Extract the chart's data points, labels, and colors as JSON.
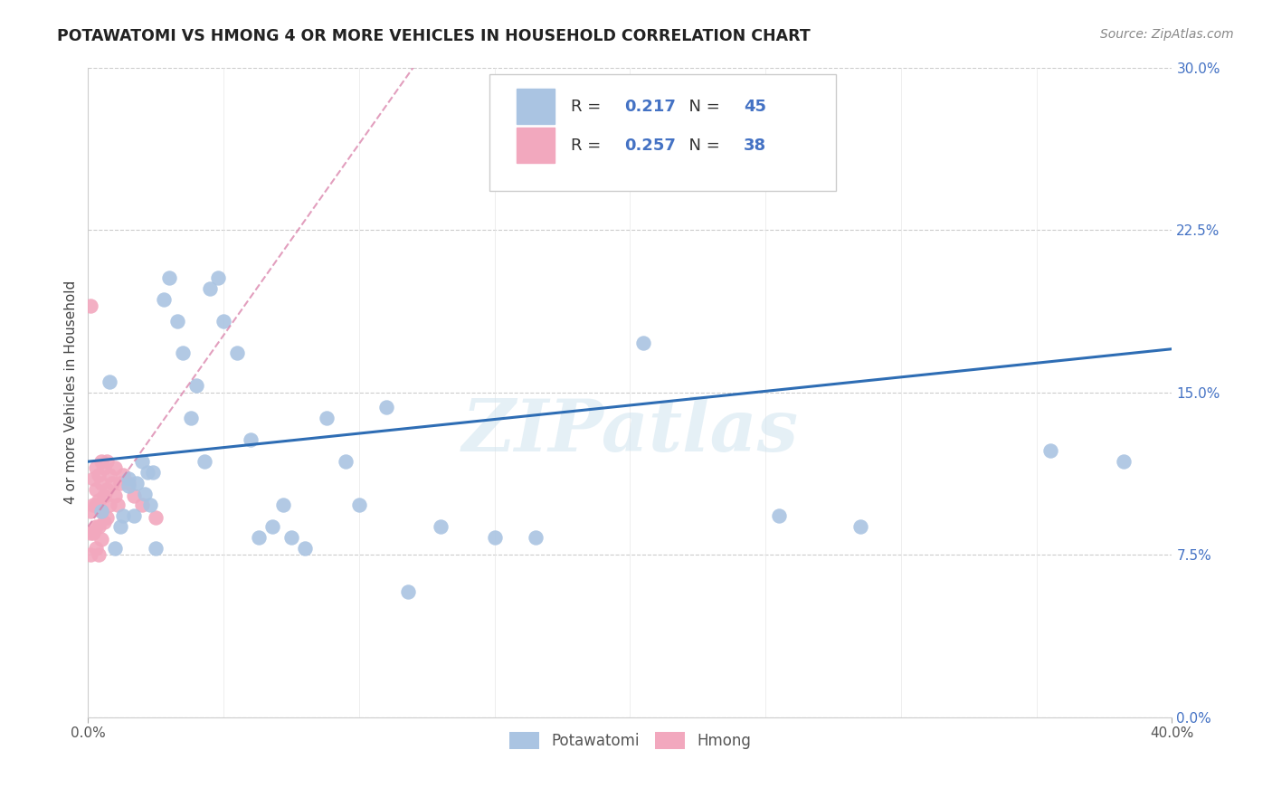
{
  "title": "POTAWATOMI VS HMONG 4 OR MORE VEHICLES IN HOUSEHOLD CORRELATION CHART",
  "source": "Source: ZipAtlas.com",
  "ylabel": "4 or more Vehicles in Household",
  "xlim": [
    0.0,
    0.4
  ],
  "ylim": [
    0.0,
    0.3
  ],
  "yticks": [
    0.0,
    0.075,
    0.15,
    0.225,
    0.3
  ],
  "ytick_labels": [
    "0.0%",
    "7.5%",
    "15.0%",
    "22.5%",
    "30.0%"
  ],
  "legend_potawatomi_R": "0.217",
  "legend_potawatomi_N": "45",
  "legend_hmong_R": "0.257",
  "legend_hmong_N": "38",
  "potawatomi_color": "#aac4e2",
  "hmong_color": "#f2a8be",
  "trend_potawatomi_color": "#2e6db4",
  "trend_hmong_color": "#d97fa8",
  "watermark": "ZIPatlas",
  "potawatomi_x": [
    0.005,
    0.008,
    0.01,
    0.012,
    0.013,
    0.015,
    0.015,
    0.017,
    0.018,
    0.02,
    0.021,
    0.022,
    0.023,
    0.024,
    0.025,
    0.028,
    0.03,
    0.033,
    0.035,
    0.038,
    0.04,
    0.043,
    0.045,
    0.048,
    0.05,
    0.055,
    0.06,
    0.063,
    0.068,
    0.072,
    0.075,
    0.08,
    0.088,
    0.095,
    0.1,
    0.11,
    0.118,
    0.13,
    0.15,
    0.165,
    0.205,
    0.255,
    0.285,
    0.355,
    0.382
  ],
  "potawatomi_y": [
    0.095,
    0.155,
    0.078,
    0.088,
    0.093,
    0.11,
    0.107,
    0.093,
    0.108,
    0.118,
    0.103,
    0.113,
    0.098,
    0.113,
    0.078,
    0.193,
    0.203,
    0.183,
    0.168,
    0.138,
    0.153,
    0.118,
    0.198,
    0.203,
    0.183,
    0.168,
    0.128,
    0.083,
    0.088,
    0.098,
    0.083,
    0.078,
    0.138,
    0.118,
    0.098,
    0.143,
    0.058,
    0.088,
    0.083,
    0.083,
    0.173,
    0.093,
    0.088,
    0.123,
    0.118
  ],
  "hmong_x": [
    0.001,
    0.001,
    0.001,
    0.002,
    0.002,
    0.002,
    0.003,
    0.003,
    0.003,
    0.003,
    0.003,
    0.004,
    0.004,
    0.004,
    0.004,
    0.005,
    0.005,
    0.005,
    0.005,
    0.006,
    0.006,
    0.006,
    0.007,
    0.007,
    0.007,
    0.008,
    0.008,
    0.009,
    0.01,
    0.01,
    0.011,
    0.012,
    0.013,
    0.015,
    0.017,
    0.02,
    0.025,
    0.001
  ],
  "hmong_y": [
    0.095,
    0.085,
    0.075,
    0.11,
    0.098,
    0.085,
    0.115,
    0.105,
    0.098,
    0.088,
    0.078,
    0.112,
    0.1,
    0.088,
    0.075,
    0.118,
    0.108,
    0.095,
    0.082,
    0.115,
    0.102,
    0.09,
    0.118,
    0.105,
    0.092,
    0.112,
    0.098,
    0.108,
    0.115,
    0.102,
    0.098,
    0.108,
    0.112,
    0.108,
    0.102,
    0.098,
    0.092,
    0.19
  ],
  "trend_pot_x0": 0.0,
  "trend_pot_y0": 0.118,
  "trend_pot_x1": 0.4,
  "trend_pot_y1": 0.17,
  "trend_hmong_x0": 0.0,
  "trend_hmong_y0": 0.088,
  "trend_hmong_x1": 0.12,
  "trend_hmong_y1": 0.3
}
